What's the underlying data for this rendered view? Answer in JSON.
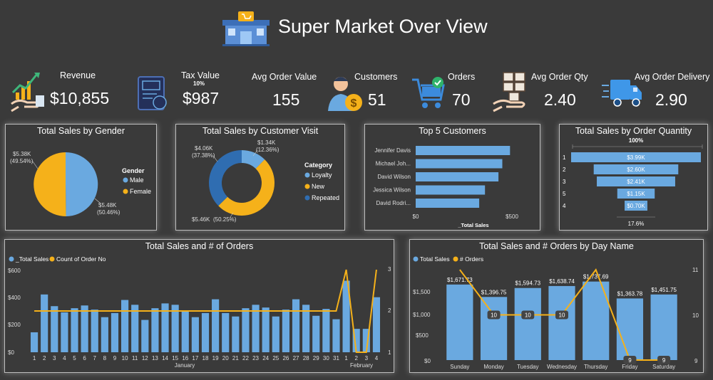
{
  "header": {
    "title": "Super Market Over View"
  },
  "colors": {
    "blue": "#6aa9e0",
    "darkblue": "#2f6db1",
    "yellow": "#f5b11a",
    "bg": "#3a3a3a"
  },
  "kpis": {
    "revenue": {
      "label": "Revenue",
      "value": "$10,855"
    },
    "tax": {
      "label": "Tax Value",
      "sub": "10%",
      "value": "$987"
    },
    "avg_order_value": {
      "label": "Avg Order Value",
      "value": "155"
    },
    "customers": {
      "label": "Customers",
      "value": "51"
    },
    "orders": {
      "label": "Orders",
      "value": "70"
    },
    "avg_order_qty": {
      "label": "Avg Order Qty",
      "value": "2.40"
    },
    "avg_order_delivery": {
      "label": "Avg Order Delivery",
      "value": "2.90"
    }
  },
  "panels": {
    "gender": {
      "title": "Total Sales by Gender"
    },
    "visit": {
      "title": "Total Sales by Customer Visit"
    },
    "top5": {
      "title": "Top 5 Customers"
    },
    "qty": {
      "title": "Total Sales by Order Quantity"
    },
    "daily": {
      "title": "Total Sales and # of Orders"
    },
    "dayname": {
      "title": "Total Sales and # Orders by Day Name"
    }
  },
  "chart_data": [
    {
      "type": "pie",
      "title": "Total Sales by Gender",
      "legend_title": "Gender",
      "labels": [
        "Male",
        "Female"
      ],
      "values": [
        5.48,
        5.38
      ],
      "value_labels": [
        "$5.48K",
        "$5.38K"
      ],
      "percent_labels": [
        "(50.46%)",
        "(49.54%)"
      ]
    },
    {
      "type": "pie",
      "title": "Total Sales by Customer Visit",
      "legend_title": "Category",
      "labels": [
        "Loyalty",
        "New",
        "Repeated"
      ],
      "values": [
        1.34,
        5.46,
        4.06
      ],
      "value_labels": [
        "$1.34K",
        "$5.46K",
        "$4.06K"
      ],
      "percent_labels": [
        "(12.36%)",
        "(50.25%)",
        "(37.38%)"
      ]
    },
    {
      "type": "bar",
      "title": "Top 5 Customers",
      "categories": [
        "Jennifer Davis",
        "Michael Joh...",
        "David Wilson",
        "Jessica Wilson",
        "David Rodri..."
      ],
      "values": [
        490,
        450,
        430,
        360,
        330
      ],
      "xlabel": "_Total Sales",
      "xticks": [
        "$0",
        "$500"
      ],
      "xlim": [
        0,
        500
      ]
    },
    {
      "type": "bar",
      "title": "Total Sales by Order Quantity",
      "categories": [
        "1",
        "2",
        "3",
        "5",
        "4"
      ],
      "values": [
        3.99,
        2.6,
        2.41,
        1.15,
        0.7
      ],
      "value_labels": [
        "$3.99K",
        "$2.60K",
        "$2.41K",
        "$1.15K",
        "$0.70K"
      ],
      "top_label": "100%",
      "bottom_label": "17.6%"
    },
    {
      "type": "bar",
      "title": "Total Sales and # of Orders",
      "series": [
        {
          "name": "_Total Sales",
          "values": [
            145,
            420,
            335,
            290,
            320,
            340,
            310,
            255,
            285,
            380,
            345,
            235,
            320,
            355,
            345,
            305,
            255,
            285,
            385,
            285,
            260,
            320,
            345,
            325,
            260,
            310,
            385,
            345,
            265,
            315,
            240,
            520,
            170,
            170,
            400
          ]
        },
        {
          "name": "Count of Order No",
          "values": [
            2,
            2,
            2,
            2,
            2,
            2,
            2,
            2,
            2,
            2,
            2,
            2,
            2,
            2,
            2,
            2,
            2,
            2,
            2,
            2,
            2,
            2,
            2,
            2,
            2,
            2,
            2,
            2,
            2,
            2,
            2,
            3,
            1,
            1,
            3
          ]
        }
      ],
      "categories": [
        "1",
        "2",
        "3",
        "4",
        "5",
        "6",
        "7",
        "8",
        "9",
        "10",
        "11",
        "12",
        "13",
        "14",
        "15",
        "16",
        "17",
        "18",
        "19",
        "20",
        "21",
        "22",
        "23",
        "24",
        "25",
        "26",
        "27",
        "28",
        "29",
        "30",
        "31",
        "1",
        "2",
        "3",
        "4"
      ],
      "month_labels": [
        "January",
        "February"
      ],
      "yticks_left": [
        "$0",
        "$200",
        "$400",
        "$600"
      ],
      "yticks_right": [
        "1",
        "2",
        "3"
      ],
      "ylim": [
        0,
        600
      ],
      "y2lim": [
        1,
        3
      ]
    },
    {
      "type": "bar",
      "title": "Total Sales and # Orders by Day Name",
      "categories": [
        "Sunday",
        "Monday",
        "Tuesday",
        "Wednesday",
        "Thursday",
        "Friday",
        "Saturday"
      ],
      "series": [
        {
          "name": "Total Sales",
          "values": [
            1671.73,
            1396.75,
            1594.73,
            1638.74,
            1737.69,
            1363.78,
            1451.75
          ],
          "labels": [
            "$1,671.73",
            "$1,396.75",
            "$1,594.73",
            "$1,638.74",
            "$1,737.69",
            "$1,363.78",
            "$1,451.75"
          ]
        },
        {
          "name": "# Orders",
          "values": [
            11,
            10,
            10,
            10,
            11,
            9,
            9
          ],
          "labels": [
            "",
            "10",
            "10",
            "10",
            "",
            "9",
            "9"
          ]
        }
      ],
      "yticks_left": [
        "$0",
        "$500",
        "$1,000",
        "$1,500"
      ],
      "yticks_right": [
        "9",
        "10",
        "11"
      ],
      "ylim": [
        0,
        2000
      ],
      "y2lim": [
        9,
        11
      ]
    }
  ]
}
